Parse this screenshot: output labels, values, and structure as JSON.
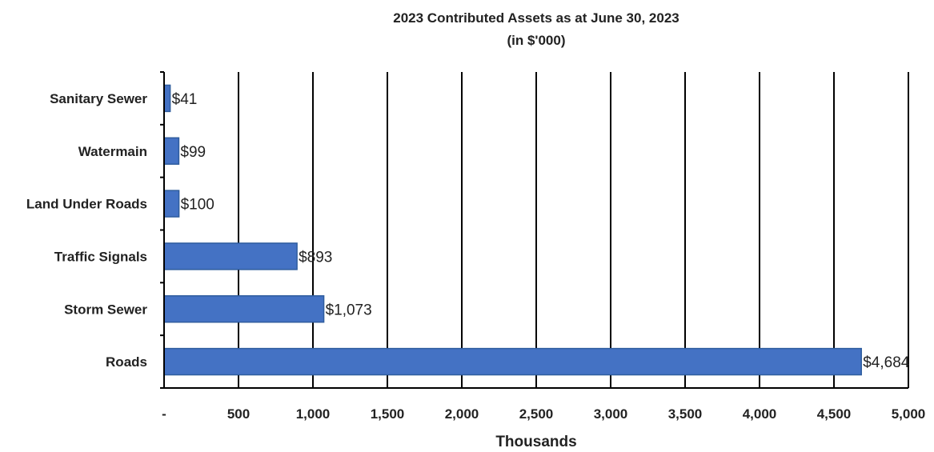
{
  "chart_data": {
    "type": "bar",
    "orientation": "horizontal",
    "title": "2023 Contributed Assets as at June 30, 2023",
    "subtitle": "(in $'000)",
    "xlabel": "Thousands",
    "ylabel": "",
    "categories": [
      "Sanitary Sewer",
      "Watermain",
      "Land Under Roads",
      "Traffic Signals",
      "Storm Sewer",
      "Roads"
    ],
    "values": [
      41,
      99,
      100,
      893,
      1073,
      4684
    ],
    "data_labels": [
      "$41",
      "$99",
      "$100",
      "$893",
      "$1,073",
      "$4,684"
    ],
    "xlim": [
      0,
      5000
    ],
    "xticks": [
      0,
      500,
      1000,
      1500,
      2000,
      2500,
      3000,
      3500,
      4000,
      4500,
      5000
    ],
    "xtick_labels": [
      "-",
      "500",
      "1,000",
      "1,500",
      "2,000",
      "2,500",
      "3,000",
      "3,500",
      "4,000",
      "4,500",
      "5,000"
    ],
    "grid": "vertical",
    "legend": "none",
    "bar_color": "#4472c4"
  }
}
